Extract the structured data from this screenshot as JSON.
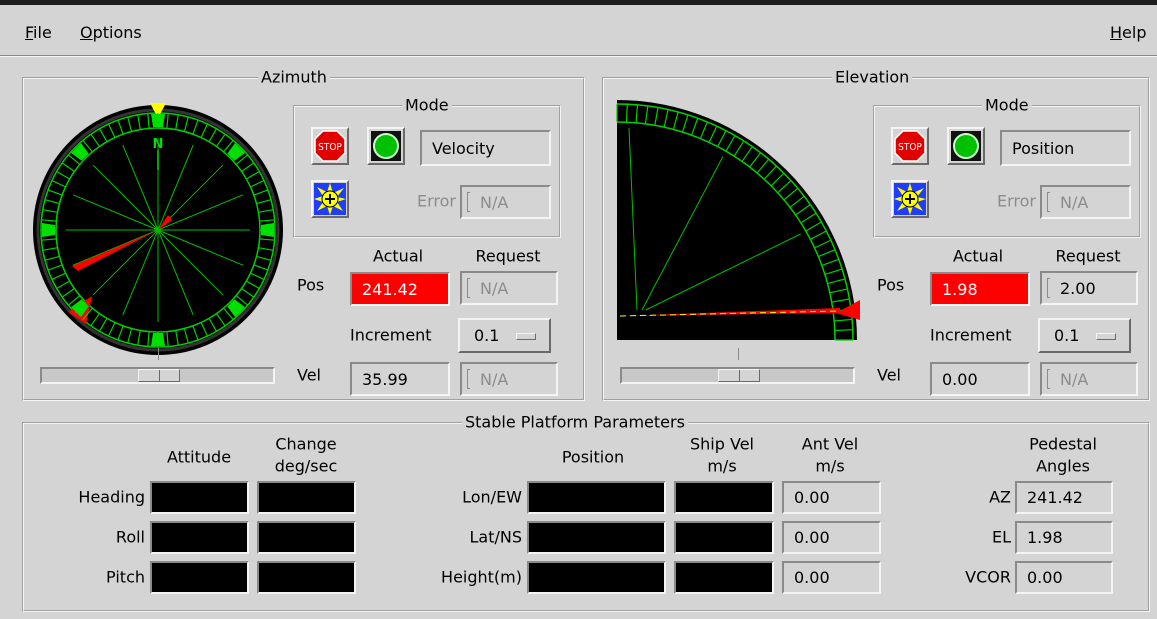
{
  "menu": {
    "file": "File",
    "options": "Options",
    "help": "Help"
  },
  "azimuth": {
    "title": "Azimuth",
    "mode_title": "Mode",
    "stop": "STOP",
    "mode": "Velocity",
    "error_label": "Error",
    "error": "N/A",
    "actual_label": "Actual",
    "request_label": "Request",
    "pos_label": "Pos",
    "pos_actual": "241.42",
    "pos_request": "N/A",
    "increment_label": "Increment",
    "increment": "0.1",
    "vel_label": "Vel",
    "vel_actual": "35.99",
    "vel_request": "N/A",
    "north": "N"
  },
  "elevation": {
    "title": "Elevation",
    "mode_title": "Mode",
    "stop": "STOP",
    "mode": "Position",
    "error_label": "Error",
    "error": "N/A",
    "actual_label": "Actual",
    "request_label": "Request",
    "pos_label": "Pos",
    "pos_actual": "1.98",
    "pos_request": "2.00",
    "increment_label": "Increment",
    "increment": "0.1",
    "vel_label": "Vel",
    "vel_actual": "0.00",
    "vel_request": "N/A"
  },
  "platform": {
    "title": "Stable Platform Parameters",
    "headers": {
      "attitude": [
        "Attitude"
      ],
      "change": [
        "Change",
        "deg/sec"
      ],
      "position": [
        "Position"
      ],
      "ship_vel": [
        "Ship Vel",
        "m/s"
      ],
      "ant_vel": [
        "Ant Vel",
        "m/s"
      ],
      "pedestal": [
        "Pedestal",
        "Angles"
      ]
    },
    "attitude_rows": [
      "Heading",
      "Roll",
      "Pitch"
    ],
    "position_rows": [
      "Lon/EW",
      "Lat/NS",
      "Height(m)"
    ],
    "ant_vel": [
      "0.00",
      "0.00",
      "0.00"
    ],
    "pedestal_rows": [
      {
        "label": "AZ",
        "value": "241.42"
      },
      {
        "label": "EL",
        "value": "1.98"
      },
      {
        "label": "VCOR",
        "value": "0.00"
      }
    ]
  }
}
